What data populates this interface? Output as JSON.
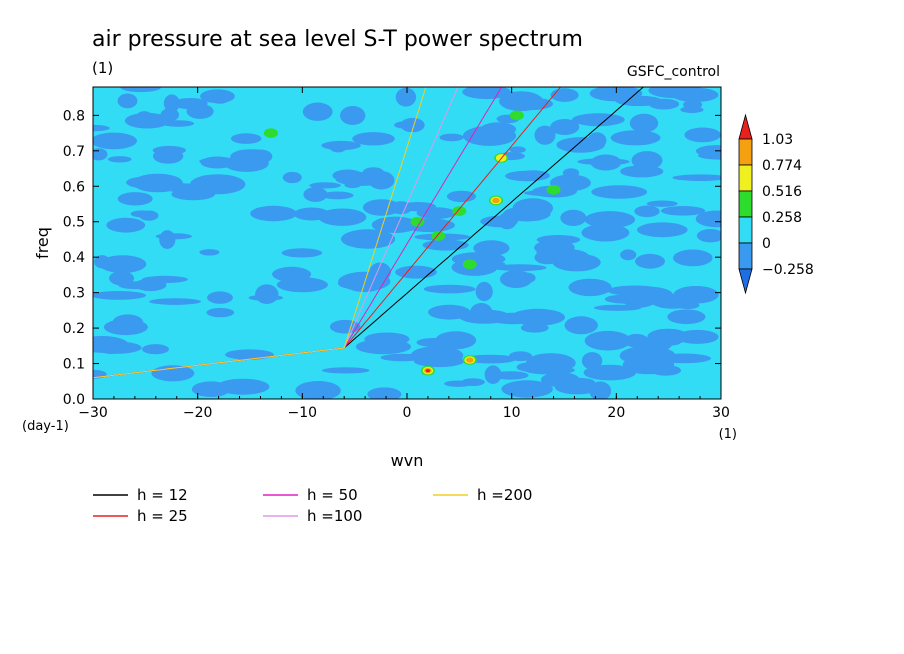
{
  "chart_data": {
    "type": "heatmap",
    "title": "air pressure at sea level S-T power spectrum",
    "units": "(1)",
    "run_label": "GSFC_control",
    "xlabel": "wvn",
    "ylabel": "freq",
    "x_unit": "(1)",
    "y_unit": "(day-1)",
    "xlim": [
      -30,
      30
    ],
    "ylim": [
      0,
      0.88
    ],
    "x_ticks": [
      -30,
      -20,
      -10,
      0,
      10,
      20,
      30
    ],
    "y_ticks": [
      0.0,
      0.1,
      0.2,
      0.3,
      0.4,
      0.5,
      0.6,
      0.7,
      0.8
    ],
    "colorbar": {
      "levels": [
        "1.03",
        "0.774",
        "0.516",
        "0.258",
        "0",
        "-0.258"
      ],
      "colors": [
        "#e8201e",
        "#f5a00f",
        "#f0f020",
        "#2edc2e",
        "#33dcf5",
        "#3a9af0",
        "#1e6ee6"
      ]
    },
    "field_description_colors": {
      "background": "#33dcf5",
      "patch": "#3a9af0"
    },
    "hotspots": [
      {
        "x": 2,
        "y": 0.08,
        "value": 1.03
      },
      {
        "x": 6,
        "y": 0.11,
        "value": 0.774
      },
      {
        "x": 8.5,
        "y": 0.56,
        "value": 0.774
      },
      {
        "x": 9,
        "y": 0.68,
        "value": 0.516
      },
      {
        "x": 1,
        "y": 0.5,
        "value": 0.258
      },
      {
        "x": 3,
        "y": 0.46,
        "value": 0.258
      },
      {
        "x": 6,
        "y": 0.38,
        "value": 0.258
      },
      {
        "x": 10.5,
        "y": 0.8,
        "value": 0.258
      },
      {
        "x": 14,
        "y": 0.59,
        "value": 0.258
      },
      {
        "x": -13,
        "y": 0.75,
        "value": 0.258
      },
      {
        "x": 5,
        "y": 0.53,
        "value": 0.258
      }
    ],
    "series": [
      {
        "name": "h = 12",
        "color": "#000000",
        "h": 12
      },
      {
        "name": "h = 25",
        "color": "#e8201e",
        "h": 25
      },
      {
        "name": "h = 50",
        "color": "#e020c0",
        "h": 50
      },
      {
        "name": "h =100",
        "color": "#e098e8",
        "h": 100
      },
      {
        "name": "h =200",
        "color": "#f0d020",
        "h": 200
      }
    ]
  }
}
